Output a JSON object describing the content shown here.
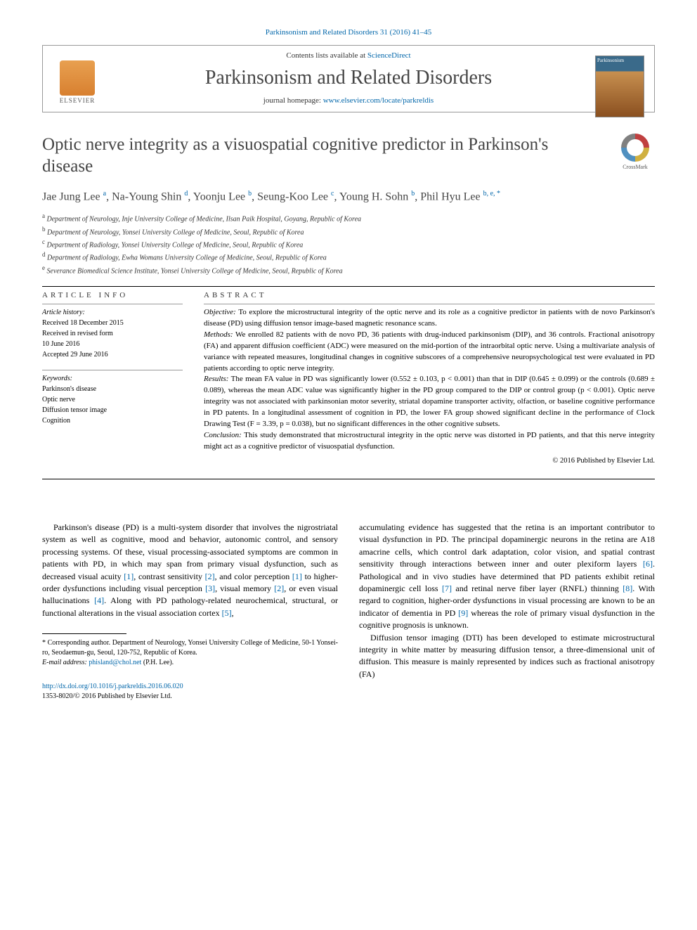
{
  "citation": "Parkinsonism and Related Disorders 31 (2016) 41–45",
  "header": {
    "contents_prefix": "Contents lists available at ",
    "contents_link": "ScienceDirect",
    "journal_name": "Parkinsonism and Related Disorders",
    "homepage_prefix": "journal homepage: ",
    "homepage_url": "www.elsevier.com/locate/parkreldis",
    "elsevier_label": "ELSEVIER",
    "cover_label": "Parkinsonism"
  },
  "crossmark_label": "CrossMark",
  "title": "Optic nerve integrity as a visuospatial cognitive predictor in Parkinson's disease",
  "authors_html": "Jae Jung Lee <sup>a</sup>, Na-Young Shin <sup>d</sup>, Yoonju Lee <sup>b</sup>, Seung-Koo Lee <sup>c</sup>, Young H. Sohn <sup>b</sup>, Phil Hyu Lee <sup>b, e, *</sup>",
  "affiliations": [
    {
      "sup": "a",
      "text": "Department of Neurology, Inje University College of Medicine, Ilsan Paik Hospital, Goyang, Republic of Korea"
    },
    {
      "sup": "b",
      "text": "Department of Neurology, Yonsei University College of Medicine, Seoul, Republic of Korea"
    },
    {
      "sup": "c",
      "text": "Department of Radiology, Yonsei University College of Medicine, Seoul, Republic of Korea"
    },
    {
      "sup": "d",
      "text": "Department of Radiology, Ewha Womans University College of Medicine, Seoul, Republic of Korea"
    },
    {
      "sup": "e",
      "text": "Severance Biomedical Science Institute, Yonsei University College of Medicine, Seoul, Republic of Korea"
    }
  ],
  "article_info": {
    "heading": "ARTICLE INFO",
    "history_label": "Article history:",
    "history": [
      "Received 18 December 2015",
      "Received in revised form",
      "10 June 2016",
      "Accepted 29 June 2016"
    ],
    "keywords_label": "Keywords:",
    "keywords": [
      "Parkinson's disease",
      "Optic nerve",
      "Diffusion tensor image",
      "Cognition"
    ]
  },
  "abstract": {
    "heading": "ABSTRACT",
    "segments": [
      {
        "label": "Objective:",
        "text": " To explore the microstructural integrity of the optic nerve and its role as a cognitive predictor in patients with de novo Parkinson's disease (PD) using diffusion tensor image-based magnetic resonance scans."
      },
      {
        "label": "Methods:",
        "text": " We enrolled 82 patients with de novo PD, 36 patients with drug-induced parkinsonism (DIP), and 36 controls. Fractional anisotropy (FA) and apparent diffusion coefficient (ADC) were measured on the mid-portion of the intraorbital optic nerve. Using a multivariate analysis of variance with repeated measures, longitudinal changes in cognitive subscores of a comprehensive neuropsychological test were evaluated in PD patients according to optic nerve integrity."
      },
      {
        "label": "Results:",
        "text": " The mean FA value in PD was significantly lower (0.552 ± 0.103, p < 0.001) than that in DIP (0.645 ± 0.099) or the controls (0.689 ± 0.089), whereas the mean ADC value was significantly higher in the PD group compared to the DIP or control group (p < 0.001). Optic nerve integrity was not associated with parkinsonian motor severity, striatal dopamine transporter activity, olfaction, or baseline cognitive performance in PD patents. In a longitudinal assessment of cognition in PD, the lower FA group showed significant decline in the performance of Clock Drawing Test (F = 3.39, p = 0.038), but no significant differences in the other cognitive subsets."
      },
      {
        "label": "Conclusion:",
        "text": " This study demonstrated that microstructural integrity in the optic nerve was distorted in PD patients, and that this nerve integrity might act as a cognitive predictor of visuospatial dysfunction."
      }
    ],
    "copyright": "© 2016 Published by Elsevier Ltd."
  },
  "body": {
    "col1": {
      "p1_a": "Parkinson's disease (PD) is a multi-system disorder that involves the nigrostriatal system as well as cognitive, mood and behavior, autonomic control, and sensory processing systems. Of these, visual processing-associated symptoms are common in patients with PD, in which may span from primary visual dysfunction, such as decreased visual acuity ",
      "c1": "[1]",
      "p1_b": ", contrast sensitivity ",
      "c2": "[2]",
      "p1_c": ", and color perception ",
      "c3": "[1]",
      "p1_d": " to higher-order dysfunctions including visual perception ",
      "c4": "[3]",
      "p1_e": ", visual memory ",
      "c5": "[2]",
      "p1_f": ", or even visual hallucinations ",
      "c6": "[4]",
      "p1_g": ". Along with PD pathology-related neurochemical, structural, or functional alterations in the visual association cortex ",
      "c7": "[5]",
      "p1_h": ","
    },
    "col2": {
      "p1_a": "accumulating evidence has suggested that the retina is an important contributor to visual dysfunction in PD. The principal dopaminergic neurons in the retina are A18 amacrine cells, which control dark adaptation, color vision, and spatial contrast sensitivity through interactions between inner and outer plexiform layers ",
      "c1": "[6]",
      "p1_b": ". Pathological and in vivo studies have determined that PD patients exhibit retinal dopaminergic cell loss ",
      "c2": "[7]",
      "p1_c": " and retinal nerve fiber layer (RNFL) thinning ",
      "c3": "[8]",
      "p1_d": ". With regard to cognition, higher-order dysfunctions in visual processing are known to be an indicator of dementia in PD ",
      "c4": "[9]",
      "p1_e": " whereas the role of primary visual dysfunction in the cognitive prognosis is unknown.",
      "p2": "Diffusion tensor imaging (DTI) has been developed to estimate microstructural integrity in white matter by measuring diffusion tensor, a three-dimensional unit of diffusion. This measure is mainly represented by indices such as fractional anisotropy (FA)"
    }
  },
  "footnote": {
    "marker": "*",
    "text": " Corresponding author. Department of Neurology, Yonsei University College of Medicine, 50-1 Yonsei-ro, Seodaemun-gu, Seoul, 120-752, Republic of Korea.",
    "email_label": "E-mail address: ",
    "email": "phisland@chol.net",
    "email_suffix": " (P.H. Lee)."
  },
  "doi": {
    "url": "http://dx.doi.org/10.1016/j.parkreldis.2016.06.020",
    "issn_line": "1353-8020/© 2016 Published by Elsevier Ltd."
  },
  "colors": {
    "link": "#0066aa",
    "text": "#000000",
    "muted": "#444444",
    "rule": "#000000"
  },
  "typography": {
    "title_fontsize": 25,
    "journal_fontsize": 28,
    "body_fontsize": 12,
    "abstract_fontsize": 11,
    "info_fontsize": 10
  }
}
